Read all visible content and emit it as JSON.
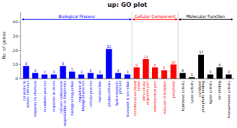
{
  "chart_data": {
    "type": "bar",
    "title": "up: GO plot",
    "ylabel": "No. of genes",
    "categories": [
      "response to abiotic stimulus",
      "response to chemical",
      "metabolic process",
      "response to stress",
      "cellular component organization or biogenesis",
      "biological regulation",
      "regulation of biological process",
      "cellular process",
      "reproduction",
      "photosynthesis",
      "lipid metabolic process",
      "transport & secretion",
      "membrane-enclosed lumen",
      "intracellular organelle part",
      "mitochondrial part",
      "reduced chloroplast",
      "peripheral",
      "hydrolase activity",
      "lyase activity",
      "pyridoxal phosphate binding",
      "ligase activity",
      "ion binding",
      "transaminase activity"
    ],
    "values": [
      9,
      4,
      3,
      3,
      9,
      5,
      3,
      4,
      3,
      21,
      4,
      3,
      8,
      14,
      8,
      6,
      10,
      4,
      1,
      17,
      3,
      8,
      3
    ],
    "colors": [
      "blue",
      "blue",
      "blue",
      "blue",
      "blue",
      "blue",
      "blue",
      "blue",
      "blue",
      "blue",
      "blue",
      "blue",
      "red",
      "red",
      "red",
      "red",
      "red",
      "black",
      "black",
      "black",
      "black",
      "black",
      "black"
    ],
    "ylim": [
      0,
      47
    ],
    "yticks": [
      0,
      10,
      20,
      30,
      40
    ],
    "data_labels": true,
    "annotations": [
      {
        "text": "Biological Process",
        "color": "blue",
        "first": "response to abiotic stimulus",
        "last": "transport & secretion",
        "y": 42
      },
      {
        "text": "Cellular Component",
        "color": "red",
        "first": "membrane-enclosed lumen",
        "last": "peripheral",
        "y": 42
      },
      {
        "text": "Molecular Function",
        "color": "black",
        "first": "hydrolase activity",
        "last": "transaminase activity",
        "y": 42
      }
    ]
  }
}
